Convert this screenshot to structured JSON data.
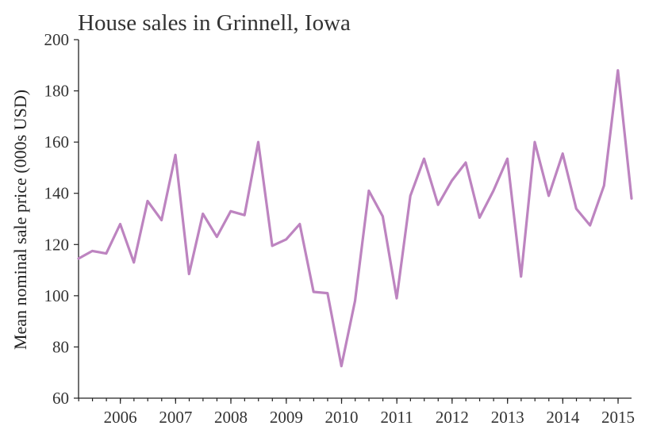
{
  "chart_data": {
    "type": "line",
    "title": "House sales in Grinnell, Iowa",
    "xlabel": "",
    "ylabel": "Mean nominal sale price (000s USD)",
    "xlim": [
      "2005-03-31",
      "2015-03-31"
    ],
    "ylim": [
      60,
      200
    ],
    "yticks": [
      60,
      80,
      100,
      120,
      140,
      160,
      180,
      200
    ],
    "xticks": [
      {
        "date": "2006-01-01",
        "label": "2006"
      },
      {
        "date": "2007-01-01",
        "label": "2007"
      },
      {
        "date": "2008-01-01",
        "label": "2008"
      },
      {
        "date": "2009-01-01",
        "label": "2009"
      },
      {
        "date": "2010-01-01",
        "label": "2010"
      },
      {
        "date": "2011-01-01",
        "label": "2011"
      },
      {
        "date": "2012-01-01",
        "label": "2012"
      },
      {
        "date": "2013-01-01",
        "label": "2013"
      },
      {
        "date": "2014-01-01",
        "label": "2014"
      },
      {
        "date": "2015-01-01",
        "label": "2015"
      }
    ],
    "grid": false,
    "color": "#bd84c0",
    "series": [
      {
        "x": [
          "2005-03-31",
          "2005-06-30",
          "2005-09-30",
          "2005-12-31",
          "2006-03-31",
          "2006-06-30",
          "2006-09-30",
          "2006-12-31",
          "2007-03-31",
          "2007-06-30",
          "2007-09-30",
          "2007-12-31",
          "2008-03-31",
          "2008-06-30",
          "2008-09-30",
          "2008-12-31",
          "2009-03-31",
          "2009-06-30",
          "2009-09-30",
          "2009-12-31",
          "2010-03-31",
          "2010-06-30",
          "2010-09-30",
          "2010-12-31",
          "2011-03-31",
          "2011-06-30",
          "2011-09-30",
          "2011-12-31",
          "2012-03-31",
          "2012-06-30",
          "2012-09-30",
          "2012-12-31",
          "2013-03-31",
          "2013-06-30",
          "2013-09-30",
          "2013-12-31",
          "2014-03-31",
          "2014-06-30",
          "2014-09-30",
          "2014-12-31",
          "2015-03-31"
        ],
        "y": [
          114.5,
          117.5,
          116.5,
          128,
          113,
          137,
          129.5,
          155,
          108.5,
          132,
          123,
          133,
          131.5,
          160,
          119.5,
          122,
          128,
          101.5,
          101,
          72.5,
          98,
          141,
          131,
          99,
          139,
          153.5,
          135.5,
          145,
          152,
          130.5,
          141,
          153.5,
          107.5,
          160,
          139,
          155.5,
          134,
          127.5,
          143,
          188,
          138
        ]
      }
    ]
  }
}
